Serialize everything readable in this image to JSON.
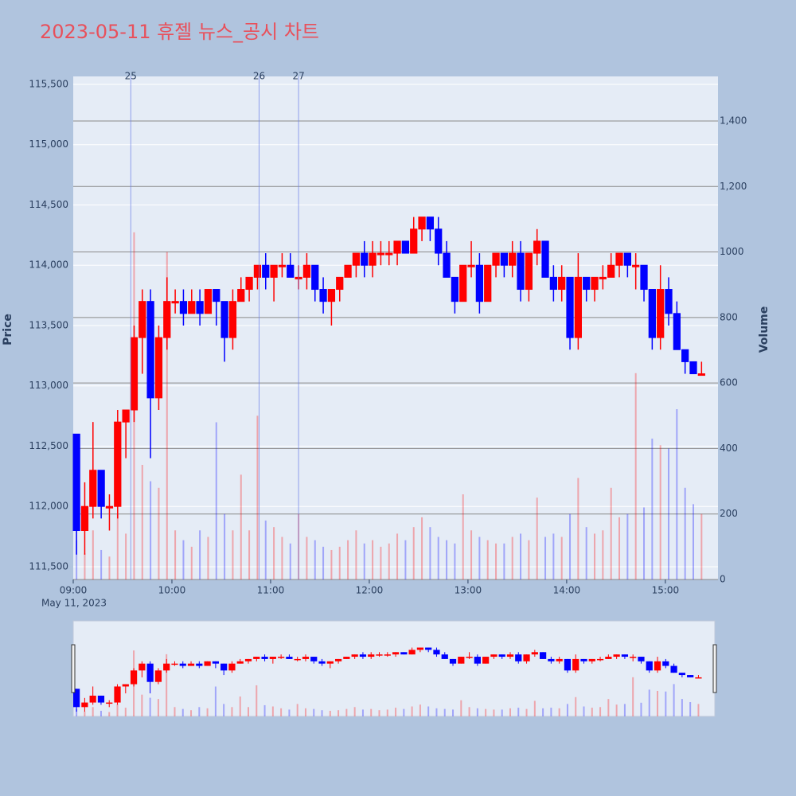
{
  "chart_data": {
    "type": "candlestick",
    "title": "2023-05-11 휴젤 뉴스_공시 차트",
    "y_label": "Price",
    "y2_label": "Volume",
    "x_date_label": "May 11, 2023",
    "increasing_color": "#ff0000",
    "decreasing_color": "#0000ff",
    "xlim": [
      "09:00",
      "15:32"
    ],
    "xticks": [
      "09:00",
      "10:00",
      "11:00",
      "12:00",
      "13:00",
      "14:00",
      "15:00"
    ],
    "ylim": [
      111394,
      115566
    ],
    "yticks": [
      {
        "value": 111500,
        "label": "111,500"
      },
      {
        "value": 112000,
        "label": "112,000"
      },
      {
        "value": 112500,
        "label": "112,500"
      },
      {
        "value": 113000,
        "label": "113,000"
      },
      {
        "value": 113500,
        "label": "113,500"
      },
      {
        "value": 114000,
        "label": "114,000"
      },
      {
        "value": 114500,
        "label": "114,500"
      },
      {
        "value": 115000,
        "label": "115,000"
      },
      {
        "value": 115500,
        "label": "115,500"
      }
    ],
    "y2lim": [
      0,
      1536
    ],
    "y2ticks": [
      0,
      200,
      400,
      600,
      800,
      1000,
      {
        "value": 1200,
        "label": "1,200"
      },
      {
        "value": 1400,
        "label": "1,400"
      }
    ],
    "news_markers": [
      {
        "x": "09:35",
        "label": "25"
      },
      {
        "x": "10:53",
        "label": "26"
      },
      {
        "x": "11:17",
        "label": "27"
      }
    ],
    "x": [
      "09:00",
      "09:05",
      "09:10",
      "09:15",
      "09:20",
      "09:25",
      "09:30",
      "09:35",
      "09:40",
      "09:45",
      "09:50",
      "09:55",
      "10:00",
      "10:05",
      "10:10",
      "10:15",
      "10:20",
      "10:25",
      "10:30",
      "10:35",
      "10:40",
      "10:45",
      "10:50",
      "10:55",
      "11:00",
      "11:05",
      "11:10",
      "11:15",
      "11:20",
      "11:25",
      "11:30",
      "11:35",
      "11:40",
      "11:45",
      "11:50",
      "11:55",
      "12:00",
      "12:05",
      "12:10",
      "12:15",
      "12:20",
      "12:25",
      "12:30",
      "12:35",
      "12:40",
      "12:45",
      "12:50",
      "12:55",
      "13:00",
      "13:05",
      "13:10",
      "13:15",
      "13:20",
      "13:25",
      "13:30",
      "13:35",
      "13:40",
      "13:45",
      "13:50",
      "13:55",
      "14:00",
      "14:05",
      "14:10",
      "14:15",
      "14:20",
      "14:25",
      "14:30",
      "14:35",
      "14:40",
      "14:45",
      "14:50",
      "14:55",
      "15:00",
      "15:05",
      "15:10",
      "15:15",
      "15:20"
    ],
    "open": [
      112600,
      111800,
      112000,
      112300,
      112000,
      112000,
      112700,
      112800,
      113400,
      113700,
      112900,
      113400,
      113700,
      113700,
      113600,
      113700,
      113600,
      113800,
      113700,
      113400,
      113700,
      113800,
      113900,
      114000,
      113900,
      114000,
      114000,
      113900,
      113900,
      114000,
      113800,
      113700,
      113800,
      113900,
      114000,
      114100,
      114000,
      114100,
      114100,
      114100,
      114200,
      114100,
      114300,
      114400,
      114300,
      114100,
      113900,
      113700,
      114000,
      114000,
      113700,
      114000,
      114100,
      114000,
      114100,
      113800,
      114100,
      114200,
      113900,
      113800,
      113900,
      113400,
      113900,
      113800,
      113900,
      113900,
      114000,
      114100,
      114000,
      114000,
      113800,
      113400,
      113800,
      113600,
      113300,
      113200,
      113100
    ],
    "high": [
      112600,
      112200,
      112700,
      112300,
      112100,
      112800,
      112800,
      113500,
      113800,
      113800,
      113500,
      113900,
      113800,
      113800,
      113800,
      113800,
      113800,
      113800,
      113700,
      113800,
      113900,
      113900,
      114000,
      114100,
      114000,
      114100,
      114100,
      114000,
      114100,
      114000,
      113900,
      113800,
      113900,
      114000,
      114100,
      114200,
      114200,
      114200,
      114200,
      114200,
      114200,
      114400,
      114400,
      114400,
      114400,
      114200,
      113900,
      114000,
      114200,
      114100,
      114000,
      114100,
      114100,
      114200,
      114200,
      114100,
      114300,
      114200,
      114000,
      114000,
      113900,
      114100,
      113900,
      113900,
      114000,
      114100,
      114100,
      114100,
      114100,
      114000,
      113800,
      114000,
      113900,
      113700,
      113300,
      113200,
      113200
    ],
    "low": [
      111600,
      111600,
      111900,
      111900,
      111800,
      111900,
      112400,
      112700,
      113100,
      112400,
      112800,
      113300,
      113600,
      113500,
      113600,
      113500,
      113600,
      113500,
      113200,
      113300,
      113700,
      113700,
      113800,
      113800,
      113700,
      113900,
      113900,
      113800,
      113800,
      113700,
      113600,
      113500,
      113700,
      113900,
      113900,
      113900,
      113900,
      114000,
      114000,
      114000,
      114100,
      114100,
      114200,
      114200,
      114000,
      113900,
      113600,
      113700,
      113900,
      113600,
      113700,
      113900,
      113900,
      113900,
      113700,
      113700,
      114000,
      113900,
      113700,
      113700,
      113300,
      113300,
      113700,
      113700,
      113800,
      113900,
      113900,
      113900,
      113800,
      113700,
      113300,
      113300,
      113500,
      113300,
      113100,
      113100,
      113100
    ],
    "close": [
      111800,
      112000,
      112300,
      112000,
      112000,
      112700,
      112800,
      113400,
      113700,
      112900,
      113400,
      113700,
      113700,
      113600,
      113700,
      113600,
      113800,
      113700,
      113400,
      113700,
      113800,
      113900,
      114000,
      113900,
      114000,
      114000,
      113900,
      113900,
      114000,
      113800,
      113700,
      113800,
      113900,
      114000,
      114100,
      114000,
      114100,
      114100,
      114100,
      114200,
      114100,
      114300,
      114400,
      114300,
      114100,
      113900,
      113700,
      114000,
      114000,
      113700,
      114000,
      114100,
      114000,
      114100,
      113800,
      114100,
      114200,
      113900,
      113800,
      113900,
      113400,
      113900,
      113800,
      113900,
      113900,
      114000,
      114100,
      114000,
      114000,
      113800,
      113400,
      113800,
      113600,
      113300,
      113200,
      113100,
      113100
    ],
    "volume": [
      120,
      80,
      150,
      90,
      70,
      200,
      140,
      1060,
      350,
      300,
      280,
      1000,
      150,
      120,
      100,
      150,
      130,
      480,
      200,
      150,
      320,
      150,
      500,
      180,
      160,
      130,
      110,
      200,
      130,
      120,
      100,
      90,
      100,
      120,
      150,
      110,
      120,
      100,
      110,
      140,
      120,
      160,
      190,
      160,
      130,
      120,
      110,
      260,
      150,
      130,
      120,
      110,
      110,
      130,
      140,
      120,
      250,
      130,
      140,
      130,
      200,
      310,
      160,
      140,
      150,
      280,
      190,
      200,
      630,
      220,
      430,
      410,
      400,
      520,
      280,
      230,
      200
    ]
  }
}
